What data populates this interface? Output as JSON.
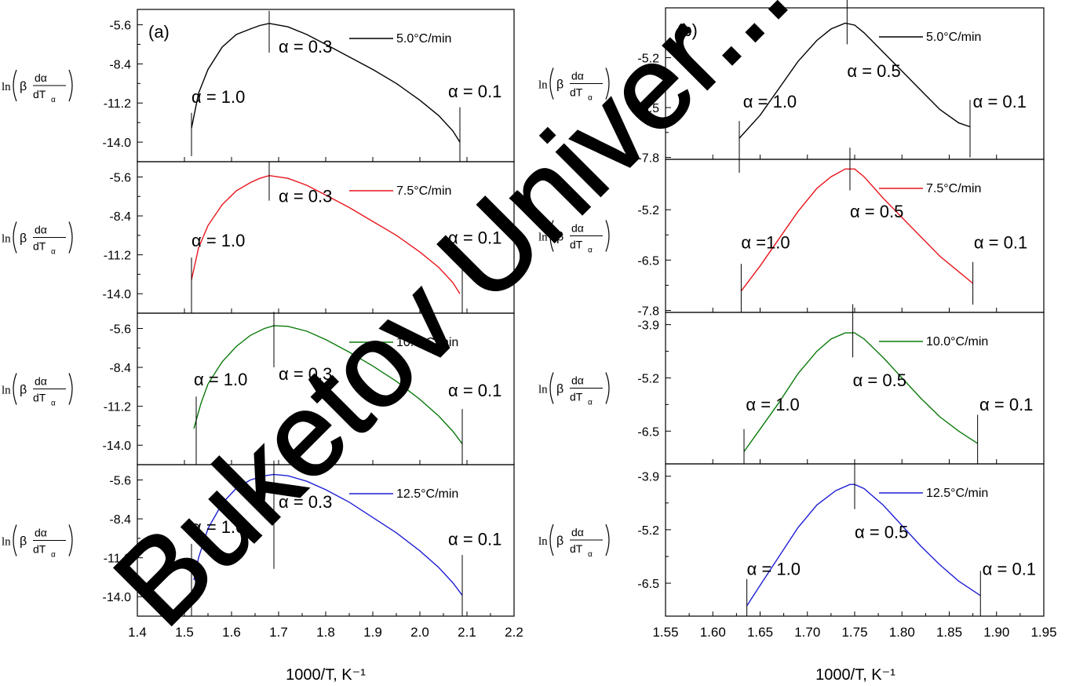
{
  "figure": {
    "watermark_text": "Buketov Univer...",
    "colors": {
      "black": "#000000",
      "red": "#e8141c",
      "green": "#0a7a0a",
      "blue": "#1f1fd6",
      "watermark": "#000000"
    }
  },
  "chart_data": [
    {
      "type": "line",
      "panel_label": "(a)",
      "xlabel": "1000/T, K⁻¹",
      "ylabel": "ln(β dα/dTα)",
      "xlim": [
        1.4,
        2.2
      ],
      "x_ticks": [
        "1.4",
        "1.5",
        "1.6",
        "1.7",
        "1.8",
        "1.9",
        "2.0",
        "2.1",
        "2.2"
      ],
      "subplots": [
        {
          "name": "5.0°C/min",
          "color": "#000000",
          "ylim": [
            -15.4,
            -4.5
          ],
          "y_ticks": [
            "-5.6",
            "-8.4",
            "-11.2",
            "-14.0"
          ],
          "x": [
            1.515,
            1.53,
            1.55,
            1.58,
            1.61,
            1.64,
            1.66,
            1.68,
            1.72,
            1.76,
            1.8,
            1.85,
            1.9,
            1.95,
            2.0,
            2.04,
            2.07,
            2.085
          ],
          "y": [
            -13.0,
            -10.5,
            -8.8,
            -7.2,
            -6.3,
            -5.9,
            -5.65,
            -5.5,
            -5.75,
            -6.3,
            -7.0,
            -7.9,
            -8.8,
            -9.8,
            -11.0,
            -12.1,
            -13.2,
            -14.0
          ],
          "annotations": [
            {
              "text": "α = 1.0",
              "x": 1.515,
              "y": -11.2,
              "marker_x": 1.515,
              "marker_y": [
                -15.0,
                -11.9
              ]
            },
            {
              "text": "α = 0.3",
              "x": 1.7,
              "y": -7.6,
              "marker_x": 1.68,
              "marker_y": [
                -7.6,
                -4.6
              ]
            },
            {
              "text": "α = 0.1",
              "x": 2.06,
              "y": -10.8,
              "marker_x": 2.085,
              "marker_y": [
                -15.4,
                -11.5
              ]
            }
          ]
        },
        {
          "name": "7.5°C/min",
          "color": "#e8141c",
          "ylim": [
            -15.4,
            -4.5
          ],
          "y_ticks": [
            "-5.6",
            "-8.4",
            "-11.2",
            "-14.0"
          ],
          "x": [
            1.515,
            1.53,
            1.55,
            1.58,
            1.61,
            1.64,
            1.66,
            1.68,
            1.72,
            1.76,
            1.8,
            1.85,
            1.9,
            1.95,
            2.0,
            2.04,
            2.07,
            2.085
          ],
          "y": [
            -13.0,
            -10.7,
            -9.1,
            -7.6,
            -6.6,
            -6.0,
            -5.7,
            -5.5,
            -5.7,
            -6.2,
            -6.9,
            -7.8,
            -8.8,
            -9.8,
            -11.0,
            -12.1,
            -13.2,
            -14.0
          ],
          "annotations": [
            {
              "text": "α = 1.0",
              "x": 1.515,
              "y": -10.6,
              "marker_x": 1.515,
              "marker_y": [
                -15.4,
                -11.4
              ]
            },
            {
              "text": "α = 0.3",
              "x": 1.7,
              "y": -7.4,
              "marker_x": 1.68,
              "marker_y": [
                -7.3,
                -4.5
              ]
            },
            {
              "text": "α = 0.1",
              "x": 2.06,
              "y": -10.4,
              "marker_x": 2.09,
              "marker_y": [
                -15.4,
                -11.2
              ]
            }
          ]
        },
        {
          "name": "10.0°C/min",
          "color": "#0a7a0a",
          "ylim": [
            -15.4,
            -4.5
          ],
          "y_ticks": [
            "-5.6",
            "-8.4",
            "-11.2",
            "-14.0"
          ],
          "x": [
            1.52,
            1.535,
            1.55,
            1.58,
            1.61,
            1.64,
            1.67,
            1.69,
            1.72,
            1.76,
            1.8,
            1.85,
            1.9,
            1.95,
            2.0,
            2.04,
            2.07,
            2.09
          ],
          "y": [
            -12.8,
            -11.0,
            -9.6,
            -8.0,
            -6.9,
            -6.1,
            -5.6,
            -5.4,
            -5.45,
            -5.8,
            -6.4,
            -7.3,
            -8.3,
            -9.4,
            -10.7,
            -11.9,
            -13.0,
            -13.9
          ],
          "annotations": [
            {
              "text": "α = 1.0",
              "x": 1.52,
              "y": -9.7,
              "marker_x": 1.525,
              "marker_y": [
                -15.4,
                -10.5
              ]
            },
            {
              "text": "α = 0.3",
              "x": 1.7,
              "y": -9.3,
              "marker_x": 1.69,
              "marker_y": [
                -8.4,
                -4.4
              ]
            },
            {
              "text": "α = 0.1",
              "x": 2.06,
              "y": -10.5,
              "marker_x": 2.09,
              "marker_y": [
                -15.4,
                -11.4
              ]
            }
          ]
        },
        {
          "name": "12.5°C/min",
          "color": "#1f1fd6",
          "ylim": [
            -15.4,
            -4.5
          ],
          "y_ticks": [
            "-5.6",
            "-8.4",
            "-11.2",
            "-14.0"
          ],
          "x": [
            1.52,
            1.53,
            1.55,
            1.58,
            1.61,
            1.64,
            1.67,
            1.69,
            1.72,
            1.76,
            1.8,
            1.85,
            1.9,
            1.95,
            2.0,
            2.04,
            2.07,
            2.09
          ],
          "y": [
            -12.8,
            -11.2,
            -9.1,
            -7.3,
            -6.2,
            -5.6,
            -5.3,
            -5.2,
            -5.3,
            -5.7,
            -6.3,
            -7.2,
            -8.3,
            -9.4,
            -10.7,
            -11.9,
            -13.0,
            -13.9
          ],
          "annotations": [
            {
              "text": "α = 1.0",
              "x": 1.515,
              "y": -9.4,
              "marker_x": 1.515,
              "marker_y": [
                -15.4,
                -10.2
              ]
            },
            {
              "text": "α = 0.3",
              "x": 1.7,
              "y": -7.6,
              "marker_x": 1.69,
              "marker_y": [
                -12.0,
                -4.2
              ]
            },
            {
              "text": "α = 0.1",
              "x": 2.06,
              "y": -10.3,
              "marker_x": 2.09,
              "marker_y": [
                -15.4,
                -11.0
              ]
            }
          ]
        }
      ]
    },
    {
      "type": "line",
      "panel_label": "(b)",
      "xlabel": "1000/T, K⁻¹",
      "ylabel": "ln(β dα/dTα)",
      "xlim": [
        1.55,
        1.95
      ],
      "x_ticks": [
        "1.55",
        "1.60",
        "1.65",
        "1.70",
        "1.75",
        "1.80",
        "1.85",
        "1.90",
        "1.95"
      ],
      "subplots": [
        {
          "name": "5.0°C/min",
          "color": "#000000",
          "ylim": [
            -7.85,
            -3.9
          ],
          "y_ticks": [
            "-5.2",
            "-6.5",
            "-7.8"
          ],
          "x": [
            1.628,
            1.65,
            1.67,
            1.69,
            1.71,
            1.725,
            1.74,
            1.75,
            1.76,
            1.78,
            1.8,
            1.82,
            1.84,
            1.86,
            1.872
          ],
          "y": [
            -7.3,
            -6.7,
            -6.0,
            -5.3,
            -4.75,
            -4.45,
            -4.3,
            -4.35,
            -4.55,
            -5.05,
            -5.55,
            -6.05,
            -6.55,
            -6.9,
            -7.0
          ],
          "annotations": [
            {
              "text": "α = 1.0",
              "x": 1.632,
              "y": -6.5,
              "marker_x": 1.628,
              "marker_y": [
                -8.2,
                -6.85
              ]
            },
            {
              "text": "α = 0.5",
              "x": 1.742,
              "y": -5.7,
              "marker_x": 1.742,
              "marker_y": [
                -4.85,
                -3.4
              ]
            },
            {
              "text": "α = 0.1",
              "x": 1.875,
              "y": -6.5,
              "marker_x": 1.872,
              "marker_y": [
                -7.8,
                -6.3
              ]
            }
          ]
        },
        {
          "name": "7.5°C/min",
          "color": "#e8141c",
          "ylim": [
            -7.85,
            -3.9
          ],
          "y_ticks": [
            "-5.2",
            "-6.5",
            "-7.8"
          ],
          "x": [
            1.63,
            1.65,
            1.67,
            1.69,
            1.71,
            1.725,
            1.74,
            1.75,
            1.76,
            1.78,
            1.8,
            1.82,
            1.84,
            1.86,
            1.875
          ],
          "y": [
            -7.3,
            -6.65,
            -5.95,
            -5.25,
            -4.65,
            -4.35,
            -4.15,
            -4.15,
            -4.35,
            -4.9,
            -5.4,
            -5.9,
            -6.4,
            -6.8,
            -7.1
          ],
          "annotations": [
            {
              "text": "α =1.0",
              "x": 1.63,
              "y": -6.2,
              "marker_x": 1.63,
              "marker_y": [
                -7.85,
                -6.6
              ]
            },
            {
              "text": "α = 0.5",
              "x": 1.745,
              "y": -5.4,
              "marker_x": 1.745,
              "marker_y": [
                -4.7,
                -3.6
              ]
            },
            {
              "text": "α = 0.1",
              "x": 1.876,
              "y": -6.2,
              "marker_x": 1.875,
              "marker_y": [
                -7.65,
                -6.55
              ]
            }
          ]
        },
        {
          "name": "10.0°C/min",
          "color": "#0a7a0a",
          "ylim": [
            -7.3,
            -3.6
          ],
          "y_ticks": [
            "-3.9",
            "-5.2",
            "-6.5"
          ],
          "x": [
            1.633,
            1.65,
            1.67,
            1.69,
            1.71,
            1.725,
            1.74,
            1.75,
            1.76,
            1.78,
            1.8,
            1.82,
            1.84,
            1.86,
            1.88
          ],
          "y": [
            -7.0,
            -6.45,
            -5.8,
            -5.1,
            -4.55,
            -4.25,
            -4.1,
            -4.1,
            -4.25,
            -4.7,
            -5.2,
            -5.7,
            -6.15,
            -6.5,
            -6.8
          ],
          "annotations": [
            {
              "text": "α = 1.0",
              "x": 1.635,
              "y": -6.0,
              "marker_x": 1.633,
              "marker_y": [
                -7.3,
                -6.45
              ]
            },
            {
              "text": "α = 0.5",
              "x": 1.748,
              "y": -5.4,
              "marker_x": 1.748,
              "marker_y": [
                -4.7,
                -3.4
              ]
            },
            {
              "text": "α = 0.1",
              "x": 1.882,
              "y": -6.0,
              "marker_x": 1.88,
              "marker_y": [
                -7.3,
                -6.1
              ]
            }
          ]
        },
        {
          "name": "12.5°C/min",
          "color": "#1f1fd6",
          "ylim": [
            -7.3,
            -3.6
          ],
          "y_ticks": [
            "-3.9",
            "-5.2",
            "-6.5"
          ],
          "x": [
            1.636,
            1.65,
            1.67,
            1.69,
            1.71,
            1.73,
            1.745,
            1.75,
            1.76,
            1.78,
            1.8,
            1.82,
            1.84,
            1.86,
            1.883
          ],
          "y": [
            -7.05,
            -6.55,
            -5.85,
            -5.15,
            -4.6,
            -4.25,
            -4.1,
            -4.1,
            -4.2,
            -4.6,
            -5.1,
            -5.6,
            -6.05,
            -6.45,
            -6.8
          ],
          "annotations": [
            {
              "text": "α = 1.0",
              "x": 1.636,
              "y": -6.3,
              "marker_x": 1.636,
              "marker_y": [
                -7.3,
                -6.4
              ]
            },
            {
              "text": "α = 0.5",
              "x": 1.75,
              "y": -5.4,
              "marker_x": 1.75,
              "marker_y": [
                -4.7,
                -3.55
              ]
            },
            {
              "text": "α = 0.1",
              "x": 1.885,
              "y": -6.3,
              "marker_x": 1.883,
              "marker_y": [
                -7.3,
                -6.2
              ]
            }
          ]
        }
      ]
    }
  ]
}
